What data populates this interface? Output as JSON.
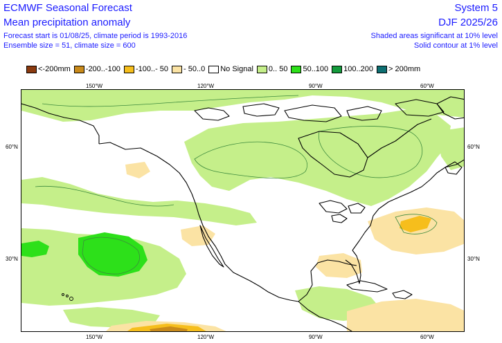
{
  "header": {
    "title": "ECMWF Seasonal Forecast",
    "subtitle": "Mean precipitation anomaly",
    "forecast_info": "Forecast start is 01/08/25, climate period is 1993-2016",
    "ensemble_info": "Ensemble size = 51, climate size = 600",
    "system": "System 5",
    "season": "DJF 2025/26",
    "significance_shaded": "Shaded areas significant at 10% level",
    "significance_contour": "Solid contour at 1% level"
  },
  "legend": {
    "items": [
      {
        "label": "<-200mm",
        "color": "#8b3a0f"
      },
      {
        "label": "-200..-100",
        "color": "#c98a1a"
      },
      {
        "label": "-100..- 50",
        "color": "#f6be1c"
      },
      {
        "label": "- 50..0",
        "color": "#fbe3a4"
      },
      {
        "label": "No Signal",
        "color": "#ffffff"
      },
      {
        "label": "0.. 50",
        "color": "#c5ef8a"
      },
      {
        "label": "50..100",
        "color": "#2de01a"
      },
      {
        "label": "100..200",
        "color": "#149b3c"
      },
      {
        "label": "> 200mm",
        "color": "#0d6f72"
      }
    ]
  },
  "map": {
    "longitude_ticks": [
      "150°W",
      "120°W",
      "90°W",
      "60°W"
    ],
    "latitude_ticks": [
      "60°N",
      "30°N"
    ],
    "coastline_color": "#000000"
  }
}
